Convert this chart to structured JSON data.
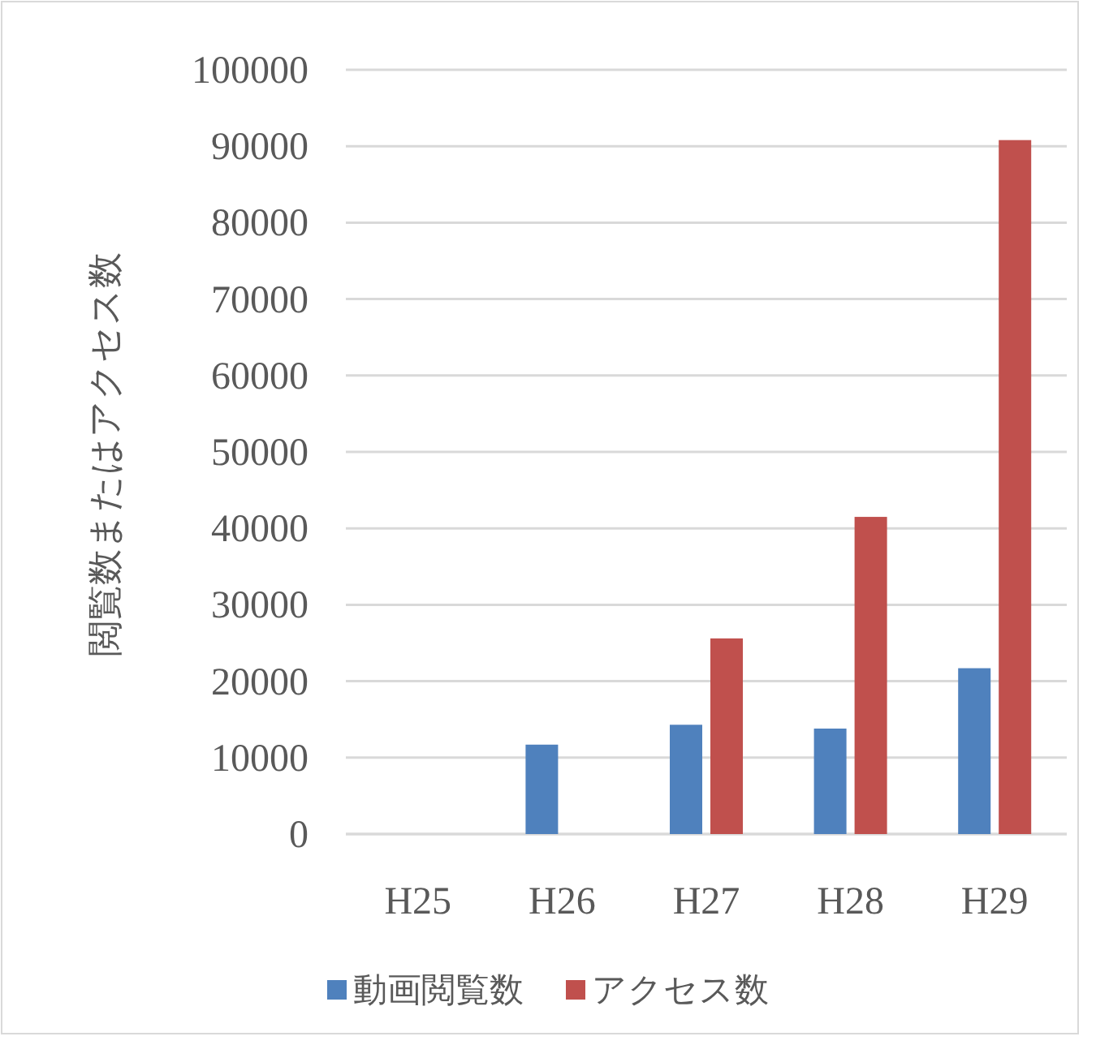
{
  "chart_data": {
    "type": "bar",
    "ylabel": "閲覧数またはアクセス数",
    "categories": [
      "H25",
      "H26",
      "H27",
      "H28",
      "H29"
    ],
    "series": [
      {
        "name": "動画閲覧数",
        "color": "#4f81bd",
        "values": [
          null,
          11700,
          14300,
          13800,
          21700
        ]
      },
      {
        "name": "アクセス数",
        "color": "#c0504d",
        "values": [
          null,
          null,
          25600,
          41500,
          90800
        ]
      }
    ],
    "ylim": [
      0,
      100000
    ],
    "yticks": [
      0,
      10000,
      20000,
      30000,
      40000,
      50000,
      60000,
      70000,
      80000,
      90000,
      100000
    ],
    "grid": "y",
    "legend": "bottom"
  }
}
